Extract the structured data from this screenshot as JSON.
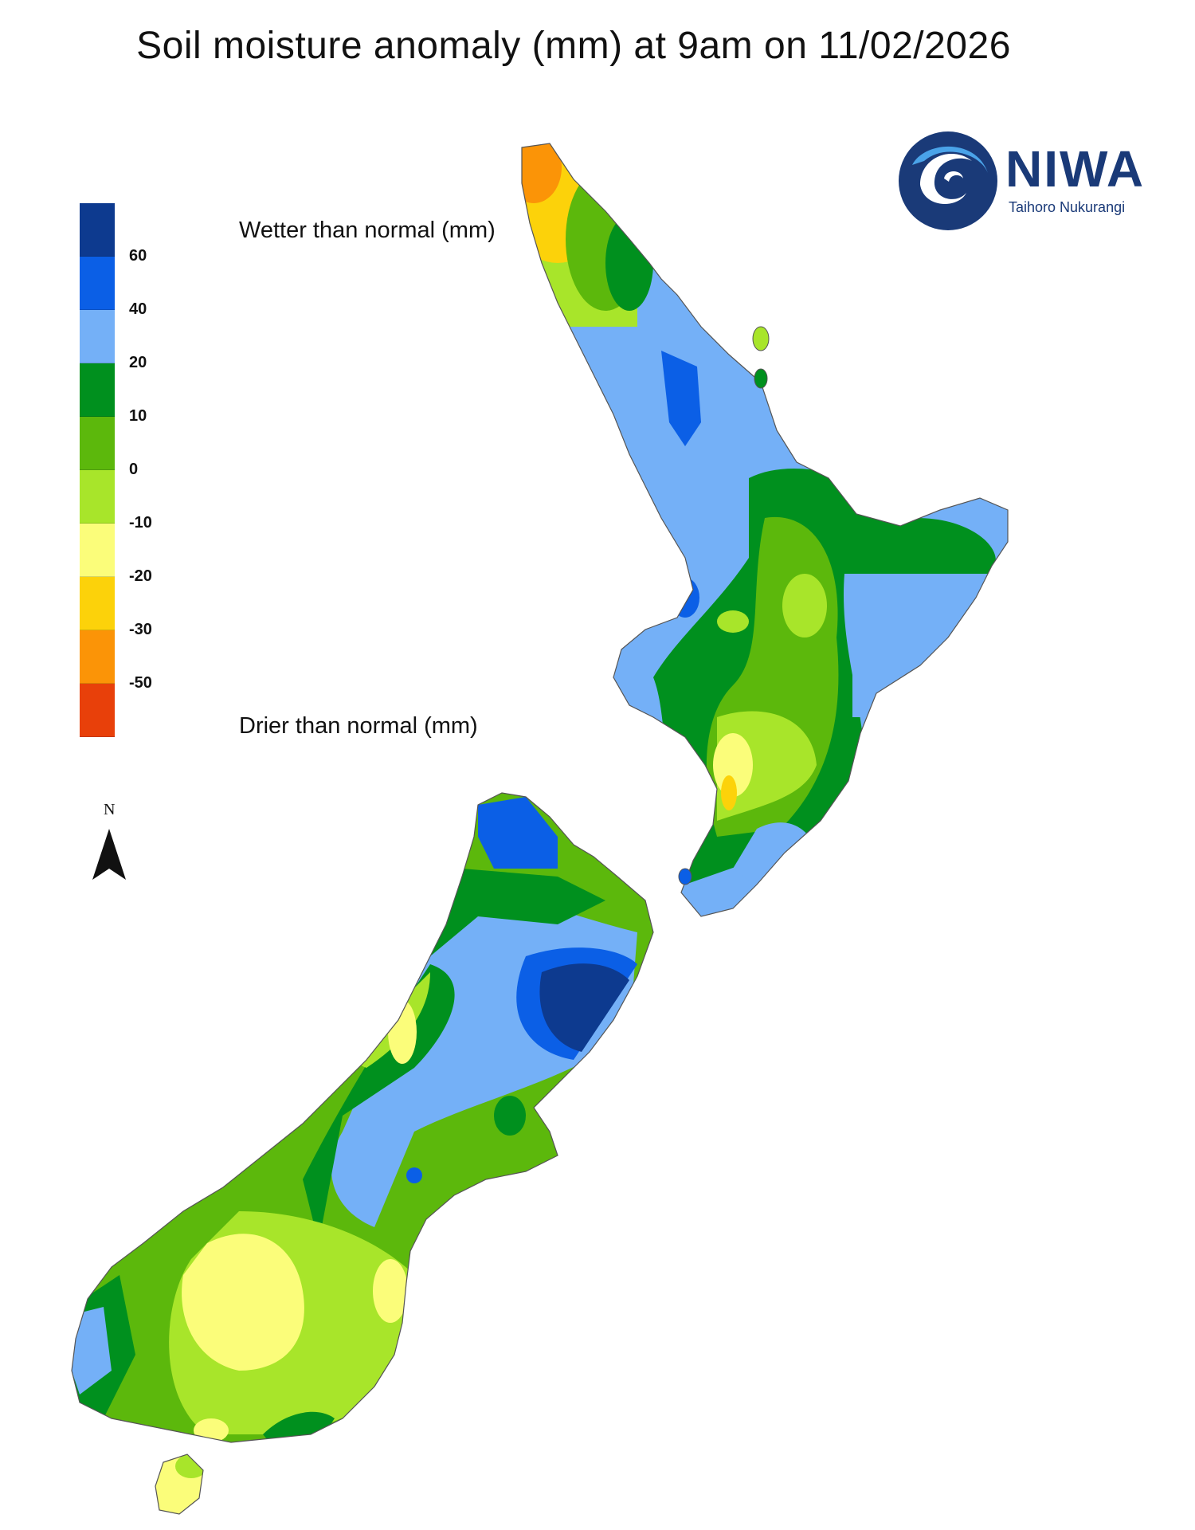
{
  "title": "Soil moisture anomaly (mm) at 9am on 11/02/2026",
  "legend": {
    "wetter_label": "Wetter than normal (mm)",
    "drier_label": "Drier than normal (mm)",
    "ticks": [
      "60",
      "40",
      "20",
      "10",
      "0",
      "-10",
      "-20",
      "-30",
      "-50"
    ],
    "colors": [
      "#0d3a8f",
      "#0b5fe6",
      "#74b0f7",
      "#00901e",
      "#5cb80c",
      "#a8e52a",
      "#fbfd7a",
      "#fcd20a",
      "#fb9407",
      "#e8400a"
    ]
  },
  "north_arrow": {
    "letter": "N"
  },
  "logo": {
    "name": "NIWA",
    "subtitle": "Taihoro Nukurangi",
    "color": "#1a3a78"
  },
  "map": {
    "regions": [
      "North Island",
      "South Island",
      "Stewart Island"
    ],
    "shading": "soil moisture anomaly"
  }
}
